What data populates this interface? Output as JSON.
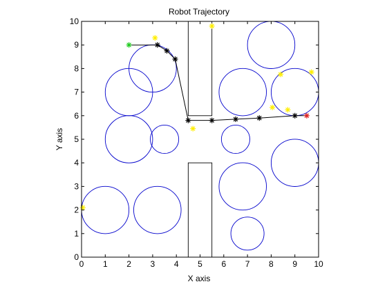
{
  "chart_data": {
    "type": "scatter",
    "title": "Robot Trajectory",
    "xlabel": "X axis",
    "ylabel": "Y axis",
    "xlim": [
      0,
      10
    ],
    "ylim": [
      0,
      10
    ],
    "x_ticks": [
      "0",
      "1",
      "2",
      "3",
      "4",
      "5",
      "6",
      "7",
      "8",
      "9",
      "10"
    ],
    "y_ticks": [
      "0",
      "1",
      "2",
      "3",
      "4",
      "5",
      "6",
      "7",
      "8",
      "9",
      "10"
    ],
    "grid": false,
    "legend": "none",
    "colors": {
      "obstacle_circle": "#0000cc",
      "obstacle_rect": "#000000",
      "trajectory": "#000000",
      "waypoint": "#000000",
      "start": "#22cc22",
      "goal": "#dd2222",
      "sample": "#ffee00"
    },
    "circles": [
      {
        "cx": 3.0,
        "cy": 8.0,
        "r": 1.0
      },
      {
        "cx": 2.0,
        "cy": 7.0,
        "r": 1.0
      },
      {
        "cx": 2.0,
        "cy": 5.0,
        "r": 1.0
      },
      {
        "cx": 3.5,
        "cy": 5.0,
        "r": 0.6
      },
      {
        "cx": 1.0,
        "cy": 2.0,
        "r": 1.0
      },
      {
        "cx": 3.2,
        "cy": 2.0,
        "r": 1.0
      },
      {
        "cx": 8.0,
        "cy": 9.0,
        "r": 1.0
      },
      {
        "cx": 6.8,
        "cy": 7.0,
        "r": 1.0
      },
      {
        "cx": 9.0,
        "cy": 7.0,
        "r": 1.0
      },
      {
        "cx": 6.5,
        "cy": 5.0,
        "r": 0.6
      },
      {
        "cx": 9.0,
        "cy": 4.0,
        "r": 1.0
      },
      {
        "cx": 6.8,
        "cy": 3.0,
        "r": 1.0
      },
      {
        "cx": 7.0,
        "cy": 1.0,
        "r": 0.7
      }
    ],
    "rectangles": [
      {
        "x0": 4.5,
        "y0": 6.0,
        "x1": 5.5,
        "y1": 10.0
      },
      {
        "x0": 4.5,
        "y0": 0.0,
        "x1": 5.5,
        "y1": 4.0
      }
    ],
    "trajectory": {
      "x": [
        2.0,
        3.2,
        3.6,
        3.95,
        4.5,
        5.5,
        6.5,
        7.5,
        9.0,
        9.5
      ],
      "y": [
        9.0,
        9.0,
        8.75,
        8.4,
        5.8,
        5.8,
        5.85,
        5.9,
        6.0,
        6.0
      ]
    },
    "start": {
      "x": 2.0,
      "y": 9.0
    },
    "goal": {
      "x": 9.5,
      "y": 6.0
    },
    "samples": {
      "x": [
        0.05,
        3.1,
        5.5,
        4.7,
        8.05,
        8.4,
        8.7,
        9.7
      ],
      "y": [
        2.1,
        9.3,
        9.8,
        5.45,
        6.35,
        7.75,
        6.25,
        7.85
      ]
    }
  }
}
